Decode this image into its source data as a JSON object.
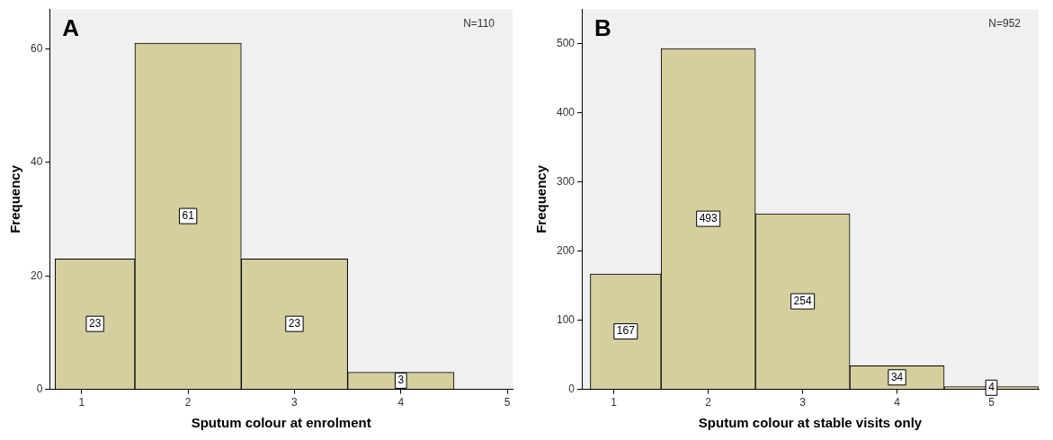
{
  "chart_data": [
    {
      "type": "histogram",
      "bins": [
        0.75,
        1.5,
        2.5,
        3.5,
        4.5
      ],
      "values": [
        23,
        61,
        23,
        3
      ],
      "color": "#d5cf9f",
      "xlabel": "Sputum colour at enrolment",
      "ylabel": "Frequency",
      "xlim": [
        0.7,
        5.05
      ],
      "xticks": [
        1,
        2,
        3,
        4,
        5
      ],
      "ylim": [
        0,
        67
      ],
      "yticks": [
        0,
        20,
        40,
        60
      ],
      "data_labels": true,
      "grid": false,
      "legend": false,
      "annotations": [
        "A",
        "N=110"
      ]
    },
    {
      "type": "histogram",
      "bins": [
        0.75,
        1.5,
        2.5,
        3.5,
        4.5,
        5.5
      ],
      "values": [
        167,
        493,
        254,
        34,
        4
      ],
      "color": "#d5cf9f",
      "xlabel": "Sputum colour at stable visits only",
      "ylabel": "Frequency",
      "xlim": [
        0.66,
        5.5
      ],
      "xticks": [
        1,
        2,
        3,
        4,
        5
      ],
      "ylim": [
        0,
        550
      ],
      "yticks": [
        0,
        100,
        200,
        300,
        400,
        500
      ],
      "data_labels": true,
      "grid": false,
      "legend": false,
      "annotations": [
        "B",
        "N=952"
      ]
    }
  ]
}
